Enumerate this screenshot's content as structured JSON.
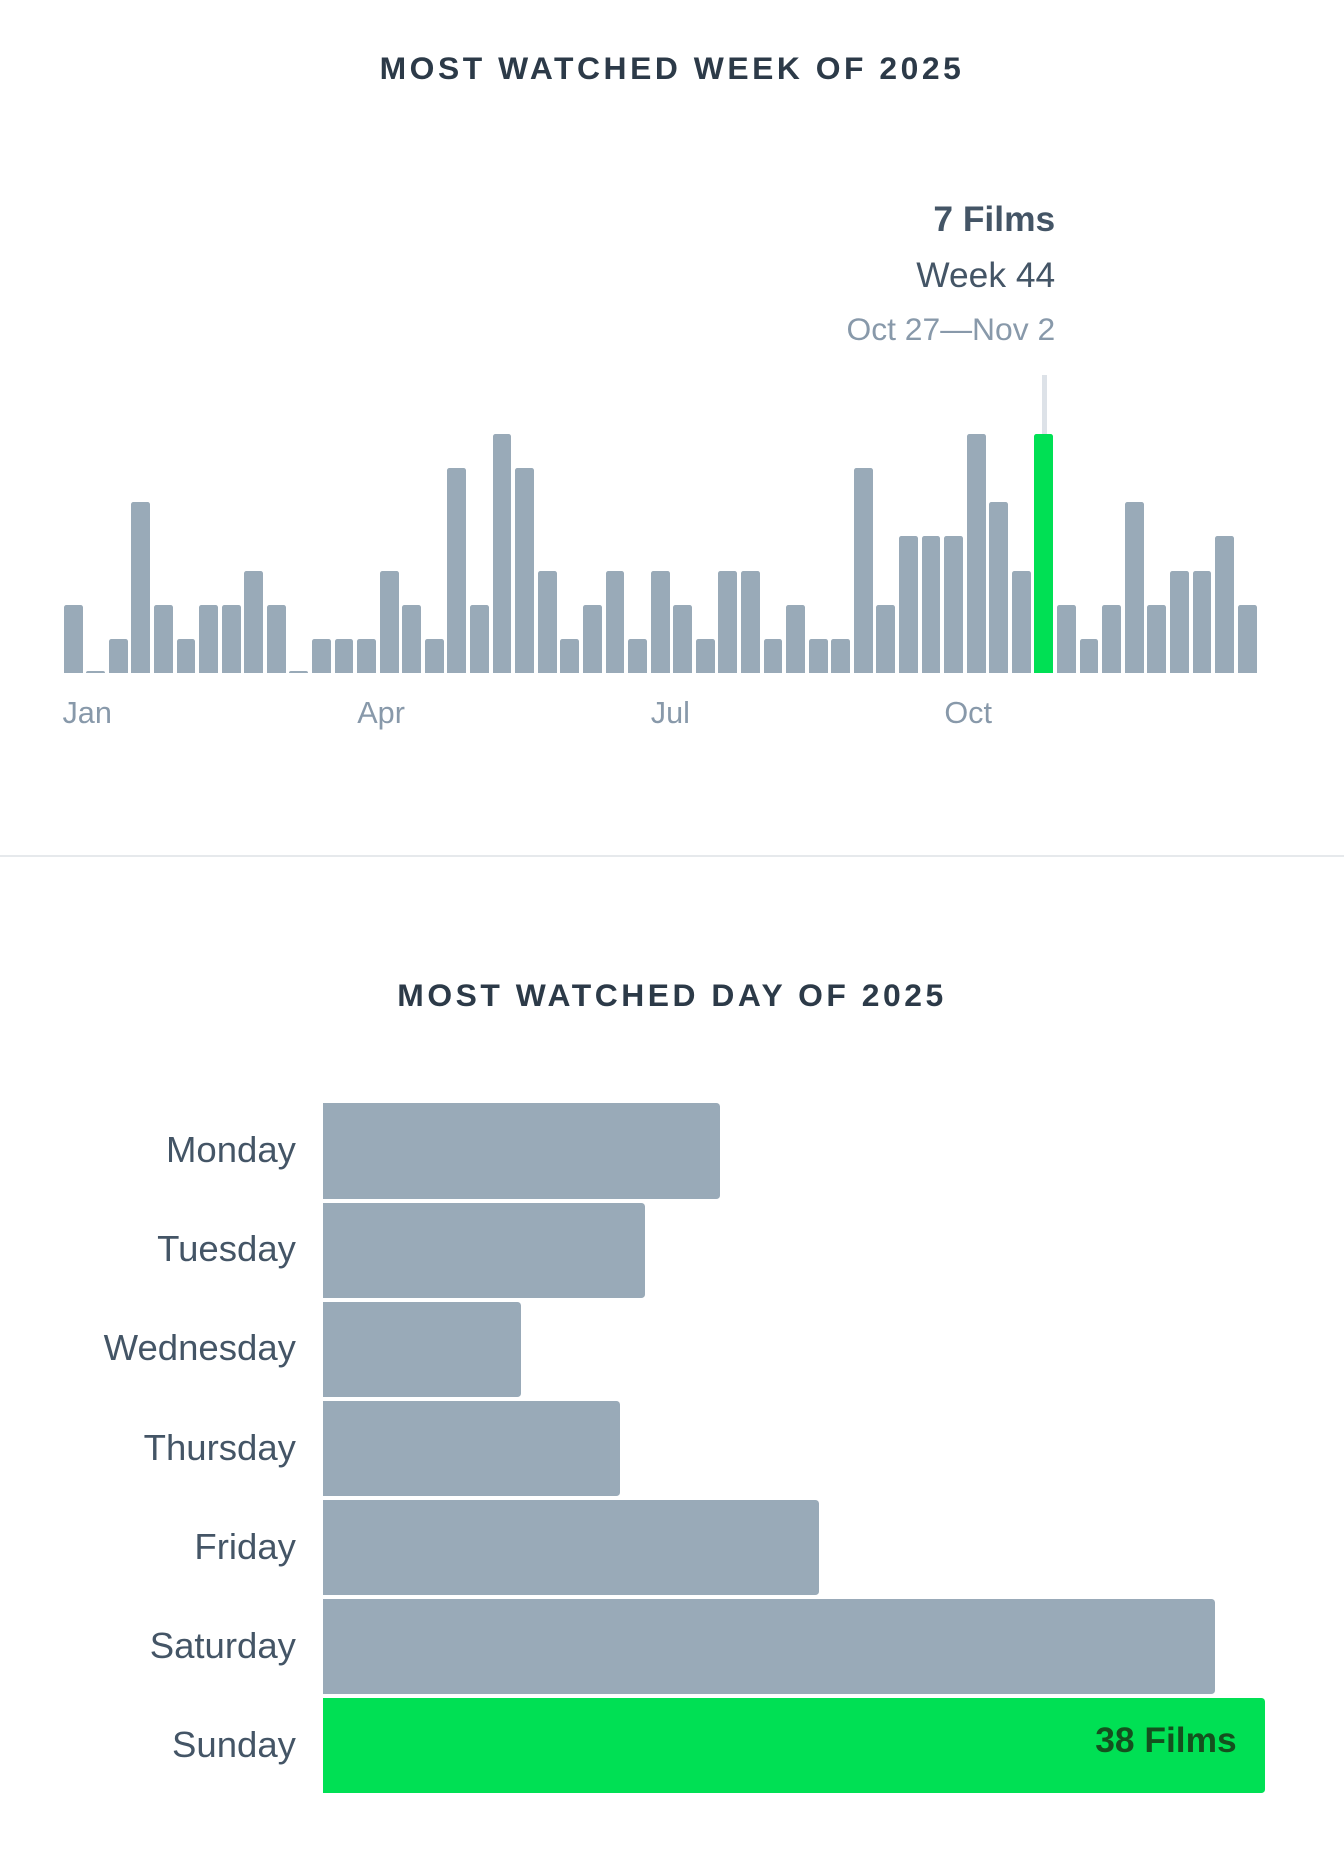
{
  "colors": {
    "bar": "#99aab8",
    "highlight": "#00e054"
  },
  "chart_data": [
    {
      "type": "bar",
      "title": "MOST WATCHED WEEK OF 2025",
      "xlabel": "",
      "ylabel": "Films",
      "x_tick_labels": [
        "Jan",
        "Apr",
        "Jul",
        "Oct"
      ],
      "x": [
        1,
        2,
        3,
        4,
        5,
        6,
        7,
        8,
        9,
        10,
        11,
        12,
        13,
        14,
        15,
        16,
        17,
        18,
        19,
        20,
        21,
        22,
        23,
        24,
        25,
        26,
        27,
        28,
        29,
        30,
        31,
        32,
        33,
        34,
        35,
        36,
        37,
        38,
        39,
        40,
        41,
        42,
        43,
        44,
        45,
        46,
        47,
        48,
        49,
        50,
        51,
        52,
        53
      ],
      "values": [
        2,
        0,
        1,
        5,
        2,
        1,
        2,
        2,
        3,
        2,
        0,
        1,
        1,
        1,
        3,
        2,
        1,
        6,
        2,
        7,
        6,
        3,
        1,
        2,
        3,
        1,
        3,
        2,
        1,
        3,
        3,
        1,
        2,
        1,
        1,
        6,
        2,
        4,
        4,
        4,
        7,
        5,
        3,
        7,
        2,
        1,
        2,
        5,
        2,
        3,
        3,
        4,
        2
      ],
      "ylim": [
        0,
        7
      ],
      "highlight_index": 43,
      "annotation": {
        "films": "7 Films",
        "week": "Week 44",
        "range": "Oct 27—Nov 2"
      }
    },
    {
      "type": "bar",
      "orientation": "horizontal",
      "title": "MOST WATCHED DAY OF 2025",
      "categories": [
        "Monday",
        "Tuesday",
        "Wednesday",
        "Thursday",
        "Friday",
        "Saturday",
        "Sunday"
      ],
      "values": [
        16,
        13,
        8,
        12,
        20,
        36,
        38
      ],
      "xlim": [
        0,
        38
      ],
      "highlight_index": 6,
      "highlight_label": "38 Films"
    }
  ]
}
